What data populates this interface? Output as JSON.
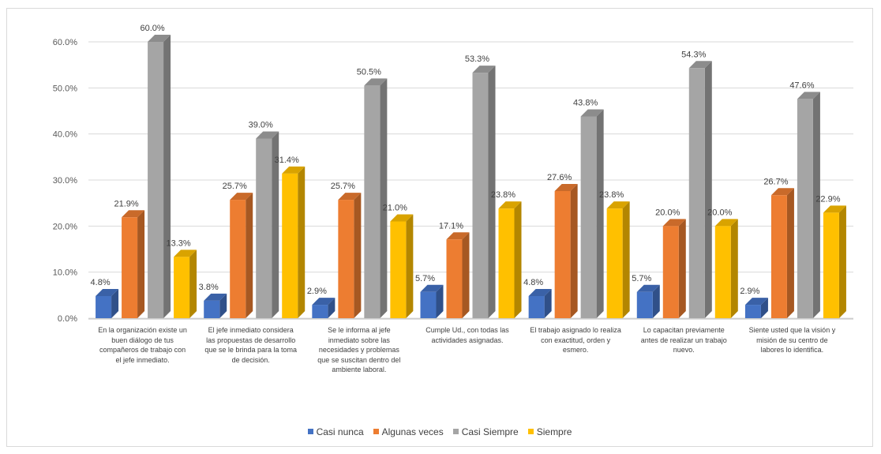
{
  "chart_data": {
    "type": "bar",
    "variant": "3d-clustered-column",
    "categories": [
      "En la organización existe un buen diálogo de tus compañeros de trabajo con el jefe inmediato.",
      "El jefe inmediato considera las propuestas de desarrollo que se le brinda para la toma de decisión.",
      "Se le informa al jefe inmediato sobre las necesidades y problemas que se suscitan dentro del ambiente laboral.",
      "Cumple Ud., con todas las actividades asignadas.",
      "El trabajo asignado lo realiza con exactitud, orden y esmero.",
      "Lo capacitan previamente antes de realizar un trabajo nuevo.",
      "Siente usted que la visión y misión de su centro de labores lo identifica."
    ],
    "series": [
      {
        "name": "Casi nunca",
        "color": "#4472c4",
        "values": [
          4.8,
          3.8,
          2.9,
          5.7,
          4.8,
          5.7,
          2.9
        ]
      },
      {
        "name": "Algunas veces",
        "color": "#ed7d31",
        "values": [
          21.9,
          25.7,
          25.7,
          17.1,
          27.6,
          20.0,
          26.7
        ]
      },
      {
        "name": "Casi Siempre",
        "color": "#a5a5a5",
        "values": [
          60.0,
          39.0,
          50.5,
          53.3,
          43.8,
          54.3,
          47.6
        ]
      },
      {
        "name": "Siempre",
        "color": "#ffc000",
        "values": [
          13.3,
          31.4,
          21.0,
          23.8,
          23.8,
          20.0,
          22.9
        ]
      }
    ],
    "value_labels": true,
    "value_suffix": "%",
    "ylim": [
      0,
      60
    ],
    "yticks": [
      "0.0%",
      "10.0%",
      "20.0%",
      "30.0%",
      "40.0%",
      "50.0%",
      "60.0%"
    ],
    "grid": true,
    "legend_position": "bottom",
    "title": "",
    "xlabel": "",
    "ylabel": ""
  }
}
